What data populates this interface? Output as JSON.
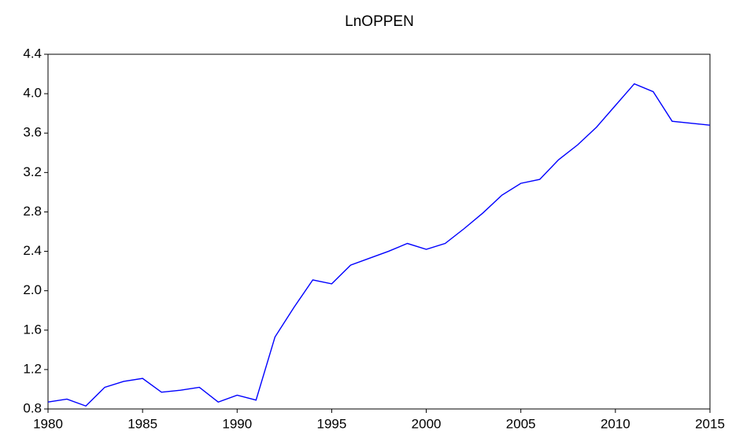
{
  "chart_data": {
    "type": "line",
    "title": "LnOPPEN",
    "x": [
      1980,
      1981,
      1982,
      1983,
      1984,
      1985,
      1986,
      1987,
      1988,
      1989,
      1990,
      1991,
      1992,
      1993,
      1994,
      1995,
      1996,
      1997,
      1998,
      1999,
      2000,
      2001,
      2002,
      2003,
      2004,
      2005,
      2006,
      2007,
      2008,
      2009,
      2010,
      2011,
      2012,
      2013,
      2014,
      2015
    ],
    "series": [
      {
        "name": "LnOPPEN",
        "color": "#0000ff",
        "values": [
          0.87,
          0.9,
          0.83,
          1.02,
          1.08,
          1.11,
          0.97,
          0.99,
          1.02,
          0.87,
          0.94,
          0.89,
          1.53,
          1.83,
          2.11,
          2.07,
          2.26,
          2.33,
          2.4,
          2.48,
          2.42,
          2.48,
          2.63,
          2.79,
          2.97,
          3.09,
          3.13,
          3.33,
          3.48,
          3.66,
          3.88,
          4.1,
          4.02,
          3.72,
          3.7,
          3.68
        ]
      }
    ],
    "xlim": [
      1980,
      2015
    ],
    "xticks": [
      1980,
      1985,
      1990,
      1995,
      2000,
      2005,
      2010,
      2015
    ],
    "ylim": [
      0.8,
      4.4
    ],
    "yticks": [
      0.8,
      1.2,
      1.6,
      {
        "value": 2,
        "label": "2.0"
      },
      2.4,
      2.8,
      3.2,
      3.6,
      {
        "value": 4,
        "label": "4.0"
      },
      4.4
    ]
  }
}
